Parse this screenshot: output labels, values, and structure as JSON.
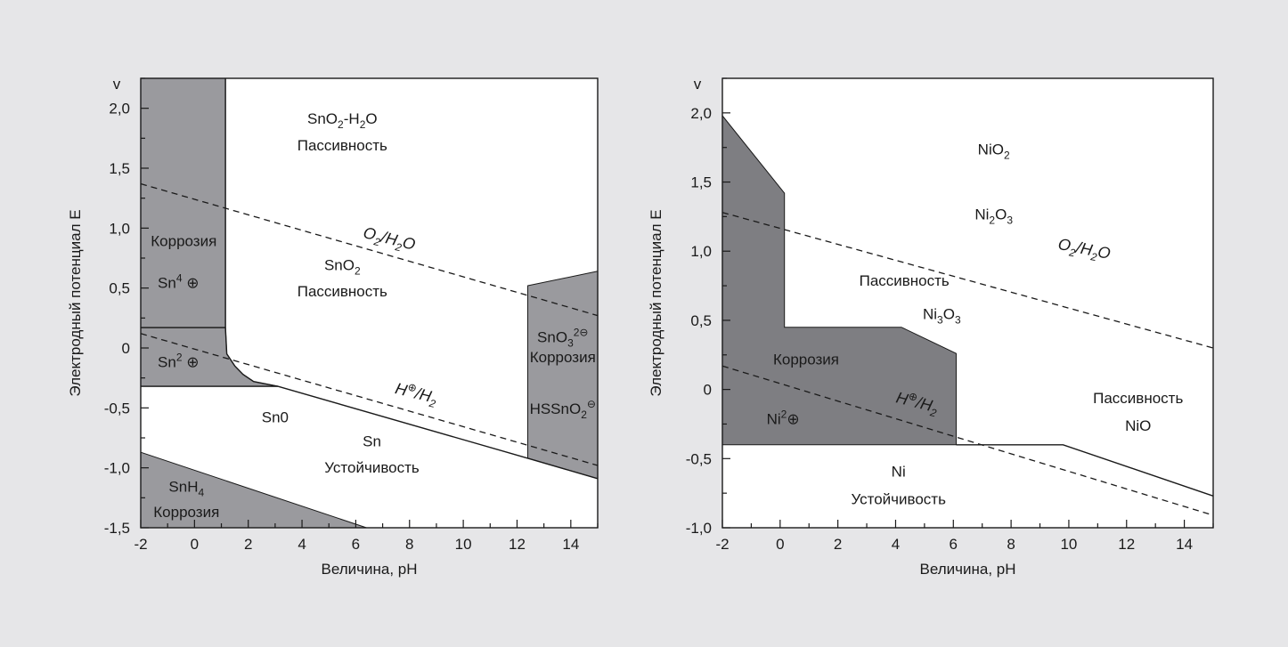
{
  "colors": {
    "background": "#e6e6e8",
    "plot_area": "#ffffff",
    "region_fill_left": "#9a9a9e",
    "region_fill_right": "#7e7e82",
    "line": "#1a1a1a"
  },
  "chart_data": [
    {
      "type": "area",
      "xlabel": "Величина, pH",
      "ylabel": "Электродный потенциал E",
      "yunit": "v",
      "xlim": [
        -2,
        15
      ],
      "ylim": [
        -1.5,
        2.25
      ],
      "xticks": [
        {
          "value": -2,
          "label": "-2"
        },
        {
          "value": 0,
          "label": "0"
        },
        {
          "value": 2,
          "label": "2"
        },
        {
          "value": 4,
          "label": "4"
        },
        {
          "value": 6,
          "label": "6"
        },
        {
          "value": 8,
          "label": "8"
        },
        {
          "value": 10,
          "label": "10"
        },
        {
          "value": 12,
          "label": "12"
        },
        {
          "value": 14,
          "label": "14"
        }
      ],
      "yticks": [
        {
          "value": 2.0,
          "label": "2,0"
        },
        {
          "value": 1.5,
          "label": "1,5"
        },
        {
          "value": 1.0,
          "label": "1,0"
        },
        {
          "value": 0.5,
          "label": "0,5"
        },
        {
          "value": 0,
          "label": "0"
        },
        {
          "value": -0.5,
          "label": "-0,5"
        },
        {
          "value": -1.0,
          "label": "-1,0"
        },
        {
          "value": -1.5,
          "label": "-1,5"
        }
      ],
      "regions": [
        {
          "fill": "#9a9a9e",
          "points": [
            [
              -2,
              2.25
            ],
            [
              1.15,
              2.25
            ],
            [
              1.15,
              0.17
            ],
            [
              -2,
              0.17
            ]
          ]
        },
        {
          "fill": "#9a9a9e",
          "points": [
            [
              -2,
              0.17
            ],
            [
              1.15,
              0.17
            ],
            [
              1.2,
              -0.05
            ],
            [
              1.5,
              -0.15
            ],
            [
              1.8,
              -0.22
            ],
            [
              2.2,
              -0.28
            ],
            [
              3.1,
              -0.32
            ],
            [
              -2,
              -0.32
            ]
          ]
        },
        {
          "fill": "#9a9a9e",
          "points": [
            [
              12.4,
              0.52
            ],
            [
              15,
              0.64
            ],
            [
              15,
              -1.09
            ],
            [
              12.4,
              -0.92
            ]
          ]
        },
        {
          "fill": "#9a9a9e",
          "points": [
            [
              -2,
              -0.87
            ],
            [
              6.4,
              -1.5
            ],
            [
              -2,
              -1.5
            ]
          ]
        }
      ],
      "solid_lines": [
        {
          "points": [
            [
              -2,
              0.17
            ],
            [
              1.15,
              0.17
            ]
          ]
        },
        {
          "points": [
            [
              1.15,
              2.25
            ],
            [
              1.15,
              0.17
            ],
            [
              1.2,
              -0.05
            ],
            [
              1.5,
              -0.15
            ],
            [
              1.8,
              -0.22
            ],
            [
              2.2,
              -0.28
            ],
            [
              3.1,
              -0.32
            ],
            [
              12.4,
              -0.92
            ],
            [
              15,
              -1.09
            ]
          ]
        },
        {
          "points": [
            [
              -2,
              -0.32
            ],
            [
              3.1,
              -0.32
            ]
          ]
        }
      ],
      "dashed_lines": [
        {
          "points": [
            [
              -2,
              1.37
            ],
            [
              15,
              0.27
            ]
          ]
        },
        {
          "points": [
            [
              -2,
              0.12
            ],
            [
              15,
              -0.98
            ]
          ]
        }
      ],
      "labels": [
        {
          "x": 5.5,
          "y": 1.87,
          "parts": [
            {
              "t": "SnO"
            },
            {
              "t": "2",
              "sub": true
            },
            {
              "t": "-H"
            },
            {
              "t": "2",
              "sub": true
            },
            {
              "t": "O"
            }
          ]
        },
        {
          "x": 5.5,
          "y": 1.65,
          "parts": [
            {
              "t": "Пассивность"
            }
          ]
        },
        {
          "x": 5.5,
          "y": 0.65,
          "parts": [
            {
              "t": "SnO"
            },
            {
              "t": "2",
              "sub": true
            }
          ]
        },
        {
          "x": 5.5,
          "y": 0.43,
          "parts": [
            {
              "t": "Пассивность"
            }
          ]
        },
        {
          "x": -0.4,
          "y": 0.85,
          "parts": [
            {
              "t": "Коррозия"
            }
          ]
        },
        {
          "x": -0.6,
          "y": 0.5,
          "parts": [
            {
              "t": "Sn"
            },
            {
              "t": "4",
              "sup": true
            },
            {
              "t": " ⊕"
            }
          ]
        },
        {
          "x": -0.6,
          "y": -0.16,
          "parts": [
            {
              "t": "Sn"
            },
            {
              "t": "2",
              "sup": true
            },
            {
              "t": " ⊕"
            }
          ]
        },
        {
          "x": 3.0,
          "y": -0.62,
          "parts": [
            {
              "t": "Sn0"
            }
          ]
        },
        {
          "x": 6.6,
          "y": -0.82,
          "parts": [
            {
              "t": "Sn"
            }
          ]
        },
        {
          "x": 6.6,
          "y": -1.04,
          "parts": [
            {
              "t": "Устойчивость"
            }
          ]
        },
        {
          "x": -0.3,
          "y": -1.2,
          "parts": [
            {
              "t": "SnH"
            },
            {
              "t": "4",
              "sub": true
            }
          ]
        },
        {
          "x": -0.3,
          "y": -1.41,
          "parts": [
            {
              "t": "Коррозия"
            }
          ]
        },
        {
          "x": 13.7,
          "y": 0.05,
          "parts": [
            {
              "t": "SnO"
            },
            {
              "t": "3",
              "sub": true
            },
            {
              "t": "2⊖",
              "sup": true
            }
          ]
        },
        {
          "x": 13.7,
          "y": -0.12,
          "parts": [
            {
              "t": "Коррозия"
            }
          ]
        },
        {
          "x": 13.7,
          "y": -0.55,
          "parts": [
            {
              "t": "HSSnO"
            },
            {
              "t": "2",
              "sub": true
            },
            {
              "t": "⊖",
              "sup": true
            }
          ]
        }
      ],
      "line_labels": [
        {
          "x": 7.2,
          "y": 0.87,
          "angle": 14,
          "parts": [
            {
              "t": "O"
            },
            {
              "t": "2",
              "sub": true
            },
            {
              "t": "/H"
            },
            {
              "t": "2",
              "sub": true
            },
            {
              "t": "O"
            }
          ]
        },
        {
          "x": 8.2,
          "y": -0.42,
          "angle": 14,
          "parts": [
            {
              "t": "H"
            },
            {
              "t": "⊕",
              "sup": true
            },
            {
              "t": "/H"
            },
            {
              "t": "2",
              "sub": true
            }
          ]
        }
      ]
    },
    {
      "type": "area",
      "xlabel": "Величина, pH",
      "ylabel": "Электродный потенциал E",
      "yunit": "v",
      "xlim": [
        -2,
        15
      ],
      "ylim": [
        -1.0,
        2.25
      ],
      "xticks": [
        {
          "value": -2,
          "label": "-2"
        },
        {
          "value": 0,
          "label": "0"
        },
        {
          "value": 2,
          "label": "2"
        },
        {
          "value": 4,
          "label": "4"
        },
        {
          "value": 6,
          "label": "6"
        },
        {
          "value": 8,
          "label": "8"
        },
        {
          "value": 10,
          "label": "10"
        },
        {
          "value": 12,
          "label": "12"
        },
        {
          "value": 14,
          "label": "14"
        }
      ],
      "yticks": [
        {
          "value": 2.0,
          "label": "2,0"
        },
        {
          "value": 1.5,
          "label": "1,5"
        },
        {
          "value": 1.0,
          "label": "1,0"
        },
        {
          "value": 0.5,
          "label": "0,5"
        },
        {
          "value": 0,
          "label": "0"
        },
        {
          "value": -0.5,
          "label": "-0,5"
        },
        {
          "value": -1.0,
          "label": "-1,0"
        }
      ],
      "regions": [
        {
          "fill": "#7e7e82",
          "points": [
            [
              -2,
              1.98
            ],
            [
              0.15,
              1.42
            ],
            [
              0.15,
              0.45
            ],
            [
              4.2,
              0.45
            ],
            [
              6.1,
              0.26
            ],
            [
              6.1,
              -0.4
            ],
            [
              -2,
              -0.4
            ]
          ]
        }
      ],
      "solid_lines": [
        {
          "points": [
            [
              6.1,
              -0.4
            ],
            [
              9.8,
              -0.4
            ],
            [
              15,
              -0.77
            ]
          ]
        }
      ],
      "dashed_lines": [
        {
          "points": [
            [
              -2,
              1.28
            ],
            [
              15,
              0.3
            ]
          ]
        },
        {
          "points": [
            [
              -2,
              0.17
            ],
            [
              15,
              -0.91
            ]
          ]
        }
      ],
      "labels": [
        {
          "x": 7.4,
          "y": 1.7,
          "parts": [
            {
              "t": "NiO"
            },
            {
              "t": "2",
              "sub": true
            }
          ]
        },
        {
          "x": 7.4,
          "y": 1.23,
          "parts": [
            {
              "t": "Ni"
            },
            {
              "t": "2",
              "sub": true
            },
            {
              "t": "O"
            },
            {
              "t": "3",
              "sub": true
            }
          ]
        },
        {
          "x": 4.3,
          "y": 0.75,
          "parts": [
            {
              "t": "Пассивность"
            }
          ]
        },
        {
          "x": 5.6,
          "y": 0.51,
          "parts": [
            {
              "t": "Ni"
            },
            {
              "t": "3",
              "sub": true
            },
            {
              "t": "O"
            },
            {
              "t": "3",
              "sub": true
            }
          ]
        },
        {
          "x": 0.9,
          "y": 0.18,
          "parts": [
            {
              "t": "Коррозия"
            }
          ]
        },
        {
          "x": 0.1,
          "y": -0.25,
          "parts": [
            {
              "t": "Ni"
            },
            {
              "t": "2",
              "sup": true
            },
            {
              "t": "⊕"
            }
          ]
        },
        {
          "x": 12.4,
          "y": -0.1,
          "parts": [
            {
              "t": "Пассивность"
            }
          ]
        },
        {
          "x": 12.4,
          "y": -0.3,
          "parts": [
            {
              "t": "NiO"
            }
          ]
        },
        {
          "x": 4.1,
          "y": -0.63,
          "parts": [
            {
              "t": "Ni"
            }
          ]
        },
        {
          "x": 4.1,
          "y": -0.83,
          "parts": [
            {
              "t": "Устойчивость"
            }
          ]
        }
      ],
      "line_labels": [
        {
          "x": 10.5,
          "y": 0.98,
          "angle": 11,
          "parts": [
            {
              "t": "O"
            },
            {
              "t": "2",
              "sub": true
            },
            {
              "t": "/H"
            },
            {
              "t": "2",
              "sub": true
            },
            {
              "t": "O"
            }
          ]
        },
        {
          "x": 4.7,
          "y": -0.13,
          "angle": 14,
          "parts": [
            {
              "t": "H"
            },
            {
              "t": "⊕",
              "sup": true
            },
            {
              "t": "/H"
            },
            {
              "t": "2",
              "sub": true
            }
          ]
        }
      ]
    }
  ]
}
